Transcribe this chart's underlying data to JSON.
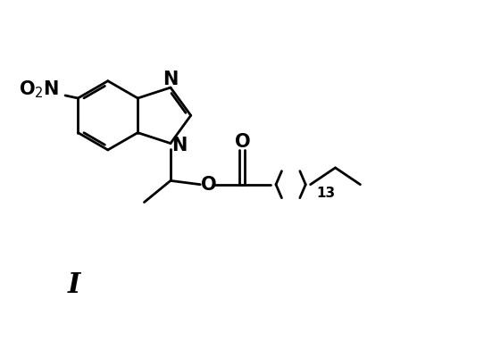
{
  "title": "I",
  "background_color": "#ffffff",
  "line_color": "#000000",
  "line_width": 2.0,
  "font_size_atom": 15,
  "font_size_title": 22,
  "fig_width": 5.42,
  "fig_height": 3.82,
  "dpi": 100,
  "xlim": [
    0,
    10
  ],
  "ylim": [
    0,
    7
  ]
}
